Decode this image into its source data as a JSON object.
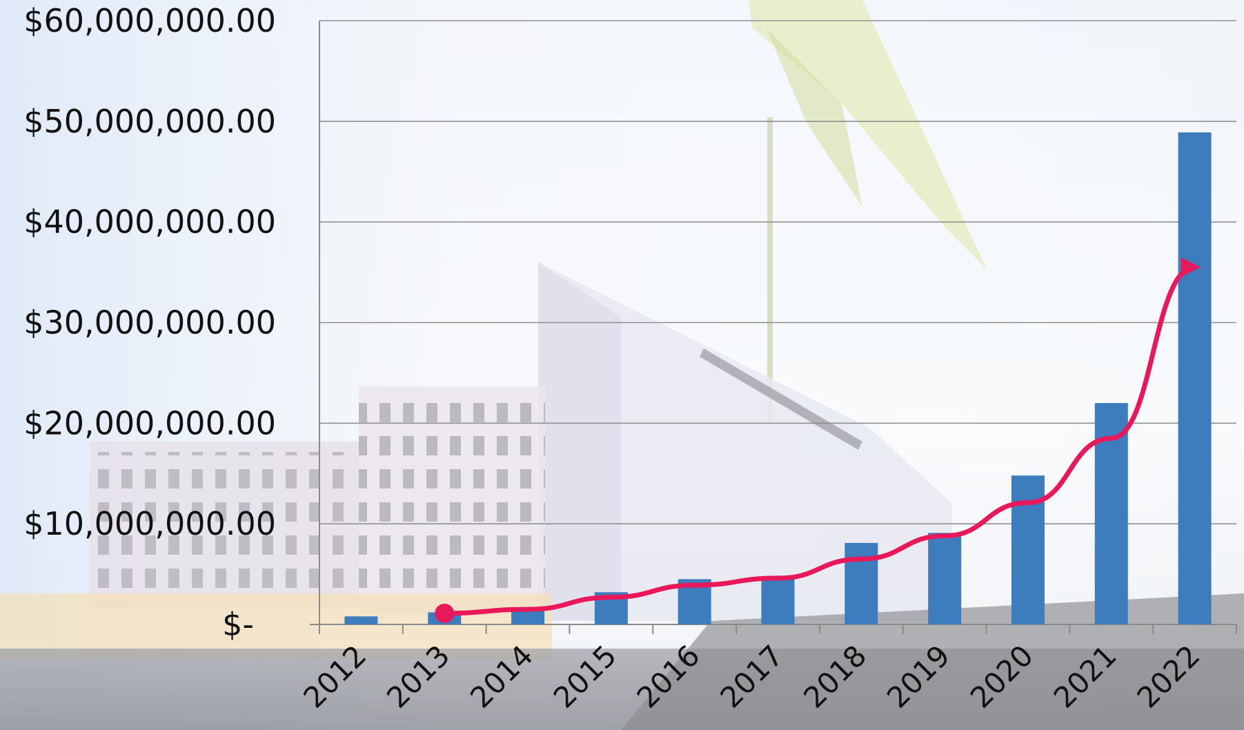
{
  "chart_data": {
    "type": "bar",
    "categories": [
      "2012",
      "2013",
      "2014",
      "2015",
      "2016",
      "2017",
      "2018",
      "2019",
      "2020",
      "2021",
      "2022"
    ],
    "values": [
      800000,
      1200000,
      1600000,
      3200000,
      4500000,
      4600000,
      8100000,
      9100000,
      14800000,
      22000000,
      48900000
    ],
    "ylim": [
      0,
      60000000
    ],
    "ytick_values": [
      0,
      10000000,
      20000000,
      30000000,
      40000000,
      50000000,
      60000000
    ],
    "ytick_labels": [
      "$-",
      "$10,000,000.00",
      "$20,000,000.00",
      "$30,000,000.00",
      "$40,000,000.00",
      "$50,000,000.00",
      "$60,000,000.00"
    ],
    "grid": true,
    "bar_color": "#3d7dbd",
    "trend": {
      "type": "line-arrow",
      "color": "#e8185a",
      "x": [
        "2013",
        "2014",
        "2015",
        "2016",
        "2017",
        "2018",
        "2019",
        "2020",
        "2021",
        "2022"
      ],
      "values": [
        1100000,
        1500000,
        2700000,
        3900000,
        4600000,
        6500000,
        8800000,
        12100000,
        18500000,
        35500000
      ]
    },
    "background": "photo of a modern building (decorative)"
  }
}
